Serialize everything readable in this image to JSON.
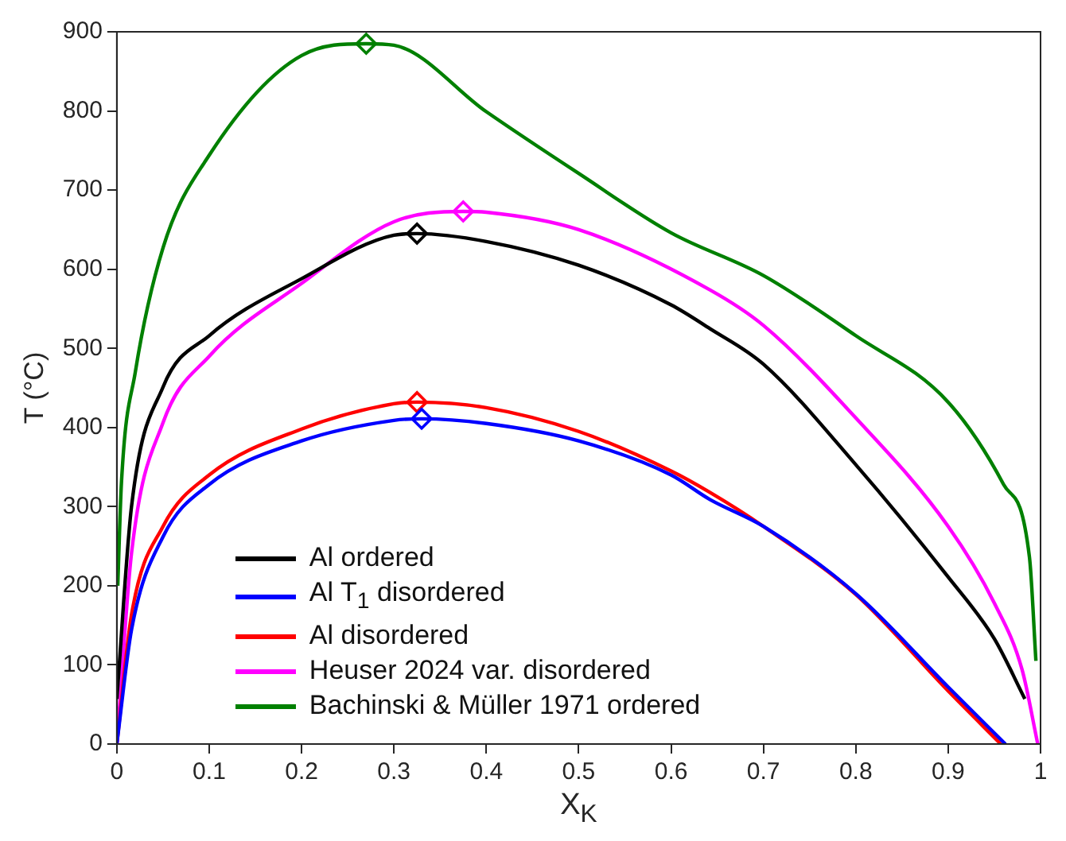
{
  "chart_data": {
    "type": "line",
    "xlabel": "X$_{K}$",
    "ylabel": "T (°C)",
    "xlim": [
      0,
      1
    ],
    "ylim": [
      0,
      900
    ],
    "xticks": [
      0,
      0.1,
      0.2,
      0.3,
      0.4,
      0.5,
      0.6,
      0.7,
      0.8,
      0.9,
      1
    ],
    "yticks": [
      0,
      100,
      200,
      300,
      400,
      500,
      600,
      700,
      800,
      900
    ],
    "grid": false,
    "legend": "bottom left",
    "marker": "none",
    "line_style": "solid",
    "series": [
      {
        "name": "Al ordered",
        "color": "#000000",
        "x": [
          0,
          0.016,
          0.05,
          0.1,
          0.2,
          0.3,
          0.325,
          0.4,
          0.5,
          0.6,
          0.642,
          0.7,
          0.8,
          0.9,
          0.95,
          0.983
        ],
        "values": [
          57,
          301,
          451,
          516,
          588,
          643,
          645,
          635,
          605,
          555,
          525,
          480,
          353,
          211,
          133,
          57
        ]
      },
      {
        "name": "Al T$_{1}$ disordered",
        "color": "#0000ff",
        "x": [
          0,
          0.016,
          0.05,
          0.1,
          0.2,
          0.3,
          0.33,
          0.4,
          0.5,
          0.6,
          0.642,
          0.7,
          0.8,
          0.9,
          0.962
        ],
        "values": [
          0,
          145,
          262,
          328,
          383,
          409,
          411,
          405,
          383,
          340,
          309,
          275,
          190,
          72,
          0
        ]
      },
      {
        "name": "Al disordered",
        "color": "#ff0000",
        "x": [
          0,
          0.016,
          0.05,
          0.1,
          0.2,
          0.3,
          0.325,
          0.4,
          0.5,
          0.6,
          0.642,
          0.7,
          0.8,
          0.9,
          0.957
        ],
        "values": [
          0,
          164,
          275,
          340,
          398,
          430,
          432,
          425,
          395,
          345,
          318,
          275,
          189,
          67,
          0
        ]
      },
      {
        "name": "Heuser 2024 var. disordered",
        "color": "#ff00ff",
        "x": [
          0,
          0.016,
          0.05,
          0.1,
          0.2,
          0.3,
          0.375,
          0.4,
          0.5,
          0.642,
          0.7,
          0.8,
          0.9,
          0.95,
          0.98,
          0.997
        ],
        "values": [
          0,
          242,
          406,
          490,
          582,
          660,
          673,
          672,
          650,
          574,
          529,
          412,
          275,
          178,
          94,
          0
        ]
      },
      {
        "name": "Bachinski & Müller 1971 ordered",
        "color": "#008000",
        "x": [
          0.001,
          0.005,
          0.02,
          0.05,
          0.1,
          0.2,
          0.27,
          0.3,
          0.4,
          0.5,
          0.6,
          0.7,
          0.8,
          0.9,
          0.96,
          0.988,
          0.995
        ],
        "values": [
          200,
          330,
          470,
          627,
          744,
          870,
          885,
          883,
          799,
          721,
          646,
          592,
          516,
          432,
          328,
          236,
          105
        ]
      },
      {
        "type": "scatter",
        "marker": "diamond",
        "color": "#000000",
        "x": [
          0.325
        ],
        "values": [
          645
        ]
      },
      {
        "type": "scatter",
        "marker": "diamond",
        "color": "#0000ff",
        "x": [
          0.33
        ],
        "values": [
          411
        ]
      },
      {
        "type": "scatter",
        "marker": "diamond",
        "color": "#ff0000",
        "x": [
          0.325
        ],
        "values": [
          432
        ]
      },
      {
        "type": "scatter",
        "marker": "diamond",
        "color": "#ff00ff",
        "x": [
          0.375
        ],
        "values": [
          673
        ]
      },
      {
        "type": "scatter",
        "marker": "diamond",
        "color": "#008000",
        "x": [
          0.27
        ],
        "values": [
          885
        ]
      }
    ]
  }
}
